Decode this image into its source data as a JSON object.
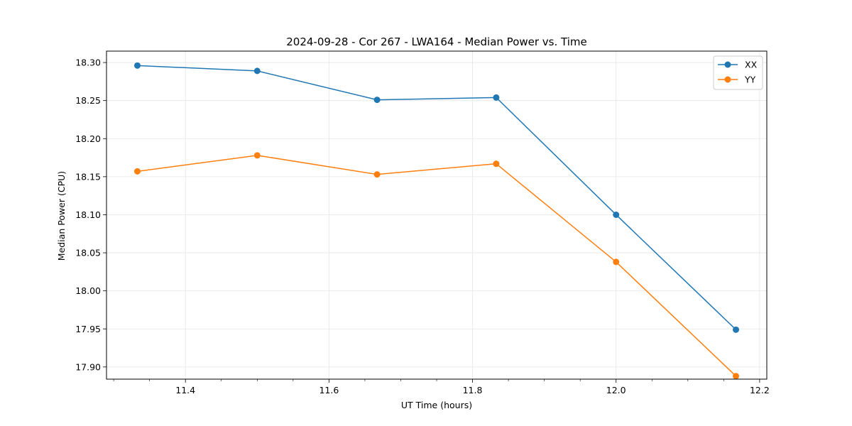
{
  "chart_data": {
    "type": "line",
    "title": "2024-09-28 - Cor 267 - LWA164 - Median Power vs. Time",
    "xlabel": "UT Time (hours)",
    "ylabel": "Median Power (CPU)",
    "xlim": [
      11.29,
      12.21
    ],
    "ylim": [
      17.884,
      18.315
    ],
    "xticks": [
      11.4,
      11.6,
      11.8,
      12.0,
      12.2
    ],
    "xtick_labels": [
      "11.4",
      "11.6",
      "11.8",
      "12.0",
      "12.2"
    ],
    "x_minor_step": 0.05,
    "yticks": [
      17.9,
      17.95,
      18.0,
      18.05,
      18.1,
      18.15,
      18.2,
      18.25,
      18.3
    ],
    "ytick_labels": [
      "17.90",
      "17.95",
      "18.00",
      "18.05",
      "18.10",
      "18.15",
      "18.20",
      "18.25",
      "18.30"
    ],
    "grid": true,
    "legend_position": "top-right",
    "x": [
      11.333,
      11.5,
      11.667,
      11.833,
      12.0,
      12.167
    ],
    "series": [
      {
        "name": "XX",
        "color": "#1f77b4",
        "values": [
          18.296,
          18.289,
          18.251,
          18.254,
          18.1,
          17.949
        ]
      },
      {
        "name": "YY",
        "color": "#ff7f0e",
        "values": [
          18.157,
          18.178,
          18.153,
          18.167,
          18.038,
          17.888
        ]
      }
    ]
  }
}
